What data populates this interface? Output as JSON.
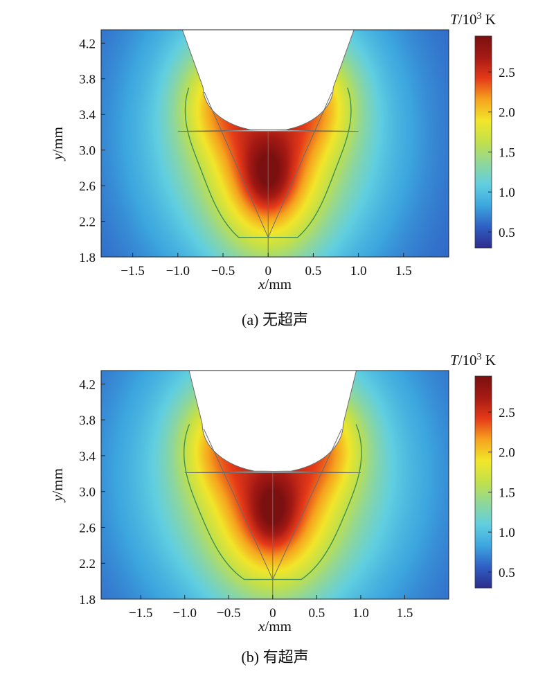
{
  "colors": {
    "colormap": [
      "#2c2c8c",
      "#2f5fc4",
      "#3ca6df",
      "#61cfe0",
      "#8fd79a",
      "#c2e04a",
      "#f2e62a",
      "#f6a31e",
      "#e53a19",
      "#a51a14",
      "#7a1010"
    ],
    "contour": "#3f8f55",
    "mesh_line": "#6b6b6b"
  },
  "chart_data": [
    {
      "type": "heatmap",
      "panel": "a",
      "caption": "(a) 无超声",
      "xlabel_var": "x",
      "xlabel_unit": "/mm",
      "ylabel_var": "y",
      "ylabel_unit": "/mm",
      "xlim": [
        -1.85,
        2.0
      ],
      "ylim": [
        1.8,
        4.35
      ],
      "xticks": [
        {
          "value": -1.5,
          "label": "−1.5"
        },
        {
          "value": -1.0,
          "label": "−1.0"
        },
        {
          "value": -0.5,
          "label": "−0.5"
        },
        {
          "value": 0,
          "label": "0"
        },
        {
          "value": 0.5,
          "label": "0.5"
        },
        {
          "value": 1.0,
          "label": "1.0"
        },
        {
          "value": 1.5,
          "label": "1.5"
        }
      ],
      "yticks": [
        {
          "value": 1.8,
          "label": "1.8"
        },
        {
          "value": 2.2,
          "label": "2.2"
        },
        {
          "value": 2.6,
          "label": "2.6"
        },
        {
          "value": 3.0,
          "label": "3.0"
        },
        {
          "value": 3.4,
          "label": "3.4"
        },
        {
          "value": 3.8,
          "label": "3.8"
        },
        {
          "value": 4.2,
          "label": "4.2"
        }
      ],
      "colorbar": {
        "title_var": "T",
        "title_rest": "/10",
        "title_exp": "3",
        "title_unit": " K",
        "range": [
          0.3,
          2.95
        ],
        "ticks": [
          {
            "value": 0.5,
            "label": "0.5"
          },
          {
            "value": 1.0,
            "label": "1.0"
          },
          {
            "value": 1.5,
            "label": "1.5"
          },
          {
            "value": 2.0,
            "label": "2.0"
          },
          {
            "value": 2.5,
            "label": "2.5"
          }
        ]
      },
      "groove": {
        "top_half_width": 0.95,
        "bottom_y": 3.21,
        "bottom_half_width": 0.72,
        "shoulder_y": 3.7
      },
      "hotspot": {
        "x": 0,
        "y": 2.72,
        "t_max": 2.95
      },
      "contour_level": 1.6
    },
    {
      "type": "heatmap",
      "panel": "b",
      "caption": "(b) 有超声",
      "xlabel_var": "x",
      "xlabel_unit": "/mm",
      "ylabel_var": "y",
      "ylabel_unit": "/mm",
      "xlim": [
        -1.95,
        2.0
      ],
      "ylim": [
        1.8,
        4.35
      ],
      "xticks": [
        {
          "value": -1.5,
          "label": "−1.5"
        },
        {
          "value": -1.0,
          "label": "−1.0"
        },
        {
          "value": -0.5,
          "label": "−0.5"
        },
        {
          "value": 0,
          "label": "0"
        },
        {
          "value": 0.5,
          "label": "0.5"
        },
        {
          "value": 1.0,
          "label": "1.0"
        },
        {
          "value": 1.5,
          "label": "1.5"
        }
      ],
      "yticks": [
        {
          "value": 1.8,
          "label": "1.8"
        },
        {
          "value": 2.2,
          "label": "2.2"
        },
        {
          "value": 2.6,
          "label": "2.6"
        },
        {
          "value": 3.0,
          "label": "3.0"
        },
        {
          "value": 3.4,
          "label": "3.4"
        },
        {
          "value": 3.8,
          "label": "3.8"
        },
        {
          "value": 4.2,
          "label": "4.2"
        }
      ],
      "colorbar": {
        "title_var": "T",
        "title_rest": "/10",
        "title_exp": "3",
        "title_unit": " K",
        "range": [
          0.3,
          2.95
        ],
        "ticks": [
          {
            "value": 0.5,
            "label": "0.5"
          },
          {
            "value": 1.0,
            "label": "1.0"
          },
          {
            "value": 1.5,
            "label": "1.5"
          },
          {
            "value": 2.0,
            "label": "2.0"
          },
          {
            "value": 2.5,
            "label": "2.5"
          }
        ]
      },
      "groove": {
        "top_half_width": 0.95,
        "bottom_y": 3.21,
        "bottom_half_width": 0.8,
        "shoulder_y": 3.75
      },
      "hotspot": {
        "x": 0,
        "y": 2.78,
        "t_max": 2.95
      },
      "contour_level": 1.6
    }
  ]
}
